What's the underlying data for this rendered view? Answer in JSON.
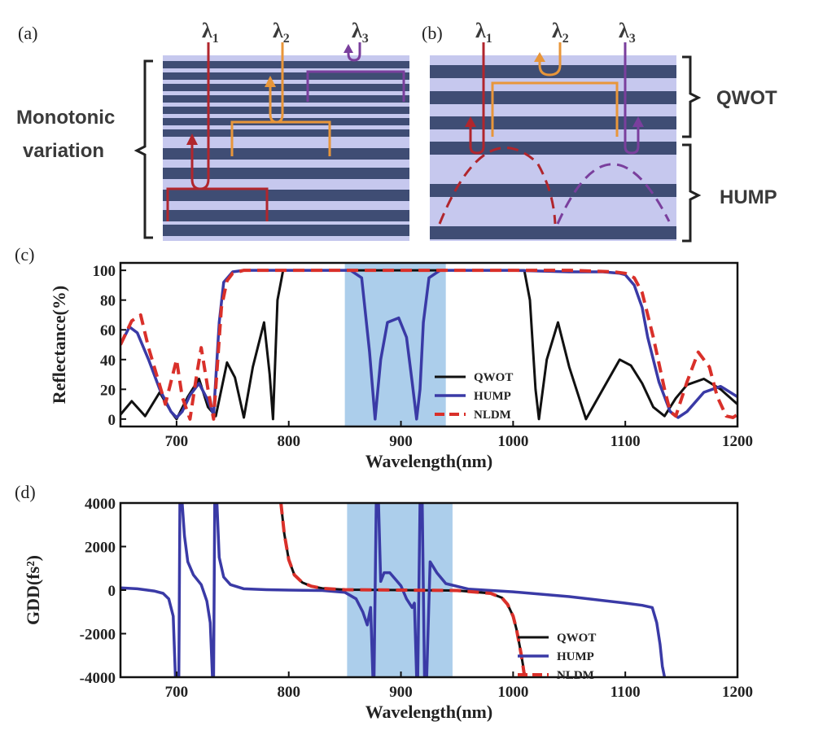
{
  "panels": {
    "a": {
      "label": "(a)",
      "lambdas": [
        "λ",
        "λ",
        "λ"
      ],
      "subs": [
        "1",
        "2",
        "3"
      ],
      "left_label_line1": "Monotonic",
      "left_label_line2": "variation"
    },
    "b": {
      "label": "(b)",
      "lambdas": [
        "λ",
        "λ",
        "λ"
      ],
      "subs": [
        "1",
        "2",
        "3"
      ],
      "qwot_label": "QWOT",
      "hump_label": "HUMP"
    }
  },
  "colors": {
    "stack_bg": "#c6c8ee",
    "stack_layer": "#3f4d74",
    "lambda1": "#b0262d",
    "lambda2": "#e8963a",
    "lambda3": "#7a3f9d",
    "qwot": "#111111",
    "hump": "#3a3aa6",
    "nldm": "#d9302a",
    "band": "#9ec6e8"
  },
  "chart_data": [
    {
      "panel": "(c)",
      "type": "line",
      "xlabel": "Wavelength(nm)",
      "ylabel": "Reflectance(%)",
      "xlim": [
        650,
        1200
      ],
      "ylim": [
        -5,
        105
      ],
      "xticks": [
        700,
        800,
        900,
        1000,
        1100,
        1200
      ],
      "yticks": [
        0,
        20,
        40,
        60,
        80,
        100
      ],
      "highlight_band": [
        850,
        940
      ],
      "legend": [
        "QWOT",
        "HUMP",
        "NLDM"
      ],
      "series": [
        {
          "name": "QWOT",
          "x": [
            650,
            660,
            672,
            685,
            695,
            700,
            710,
            720,
            728,
            735,
            745,
            752,
            760,
            768,
            778,
            783,
            786,
            790,
            795,
            800,
            850,
            900,
            950,
            1000,
            1010,
            1015,
            1020,
            1023,
            1030,
            1040,
            1050,
            1065,
            1080,
            1095,
            1105,
            1115,
            1125,
            1135,
            1145,
            1155,
            1170,
            1185,
            1200
          ],
          "y": [
            3,
            12,
            2,
            18,
            5,
            0,
            15,
            27,
            8,
            2,
            38,
            28,
            1,
            35,
            65,
            30,
            0,
            80,
            100,
            100,
            100,
            100,
            100,
            100,
            100,
            80,
            20,
            0,
            40,
            65,
            35,
            0,
            20,
            40,
            36,
            24,
            8,
            2,
            14,
            23,
            27,
            20,
            10
          ]
        },
        {
          "name": "HUMP",
          "x": [
            650,
            658,
            665,
            675,
            685,
            695,
            700,
            705,
            712,
            720,
            727,
            733,
            738,
            742,
            750,
            760,
            780,
            800,
            840,
            855,
            865,
            872,
            877,
            882,
            888,
            898,
            905,
            910,
            914,
            917,
            920,
            925,
            935,
            950,
            1000,
            1050,
            1080,
            1095,
            1100,
            1108,
            1115,
            1120,
            1130,
            1140,
            1147,
            1155,
            1170,
            1185,
            1200
          ],
          "y": [
            50,
            62,
            58,
            40,
            20,
            5,
            1,
            5,
            16,
            24,
            14,
            3,
            65,
            92,
            99,
            100,
            100,
            100,
            100,
            100,
            95,
            45,
            0,
            40,
            65,
            68,
            55,
            25,
            0,
            20,
            65,
            95,
            100,
            100,
            100,
            99,
            99,
            98,
            97,
            90,
            75,
            55,
            25,
            5,
            1,
            5,
            18,
            22,
            15
          ]
        },
        {
          "name": "NLDM",
          "x": [
            650,
            660,
            668,
            675,
            690,
            700,
            705,
            712,
            718,
            722,
            728,
            733,
            740,
            745,
            750,
            760,
            800,
            900,
            1000,
            1050,
            1090,
            1100,
            1108,
            1115,
            1125,
            1135,
            1140,
            1145,
            1155,
            1165,
            1175,
            1182,
            1190,
            1196,
            1200
          ],
          "y": [
            50,
            66,
            70,
            48,
            10,
            40,
            15,
            0,
            30,
            48,
            20,
            0,
            75,
            93,
            98,
            100,
            100,
            100,
            100,
            100,
            99,
            98,
            95,
            85,
            55,
            20,
            5,
            2,
            25,
            45,
            35,
            15,
            2,
            1,
            3
          ]
        }
      ]
    },
    {
      "panel": "(d)",
      "type": "line",
      "xlabel": "Wavelength(nm)",
      "ylabel": "GDD(fs²)",
      "xlim": [
        650,
        1200
      ],
      "ylim": [
        -4000,
        4000
      ],
      "xticks": [
        700,
        800,
        900,
        1000,
        1100,
        1200
      ],
      "yticks": [
        4000,
        2000,
        0,
        -2000,
        -4000
      ],
      "highlight_band": [
        852,
        946
      ],
      "legend": [
        "QWOT",
        "HUMP",
        "NLDM"
      ],
      "series": [
        {
          "name": "QWOT",
          "x": [
            793,
            796,
            800,
            805,
            812,
            820,
            830,
            850,
            900,
            950,
            980,
            990,
            995,
            1000,
            1003,
            1006,
            1008,
            1010,
            1012
          ],
          "y": [
            4000,
            2600,
            1400,
            700,
            350,
            180,
            80,
            20,
            0,
            -20,
            -150,
            -350,
            -650,
            -1200,
            -1800,
            -2600,
            -3200,
            -3800,
            -4000
          ]
        },
        {
          "name": "HUMP",
          "x": [
            650,
            665,
            680,
            688,
            693,
            697,
            699,
            702,
            703,
            705,
            707,
            710,
            715,
            722,
            727,
            730,
            732,
            733,
            734,
            736,
            738,
            742,
            748,
            760,
            780,
            800,
            830,
            850,
            860,
            866,
            870,
            873,
            875,
            876,
            878,
            880,
            882,
            885,
            890,
            895,
            900,
            905,
            910,
            912,
            914,
            915,
            917,
            919,
            921,
            923,
            926,
            932,
            940,
            960,
            1000,
            1050,
            1100,
            1115,
            1124,
            1128,
            1131,
            1133,
            1135
          ],
          "y": [
            100,
            60,
            -40,
            -150,
            -400,
            -1200,
            -4000,
            -4000,
            4000,
            4000,
            2500,
            1300,
            700,
            250,
            -500,
            -1500,
            -4000,
            -4000,
            4000,
            4000,
            1500,
            600,
            250,
            60,
            20,
            0,
            -20,
            -100,
            -400,
            -1000,
            -1600,
            -800,
            -4000,
            -4000,
            4000,
            4000,
            400,
            800,
            800,
            500,
            200,
            -400,
            -800,
            -600,
            -4000,
            -4000,
            4000,
            4000,
            -4000,
            -4000,
            1300,
            800,
            300,
            50,
            -80,
            -300,
            -600,
            -700,
            -800,
            -1500,
            -2500,
            -3500,
            -4000
          ]
        },
        {
          "name": "NLDM",
          "x": [
            793,
            796,
            800,
            805,
            812,
            820,
            830,
            850,
            900,
            950,
            980,
            990,
            995,
            1000,
            1003,
            1006,
            1008,
            1010
          ],
          "y": [
            4000,
            2600,
            1400,
            700,
            350,
            180,
            80,
            20,
            0,
            -20,
            -150,
            -350,
            -650,
            -1200,
            -1800,
            -2600,
            -3200,
            -3900
          ]
        }
      ]
    }
  ]
}
